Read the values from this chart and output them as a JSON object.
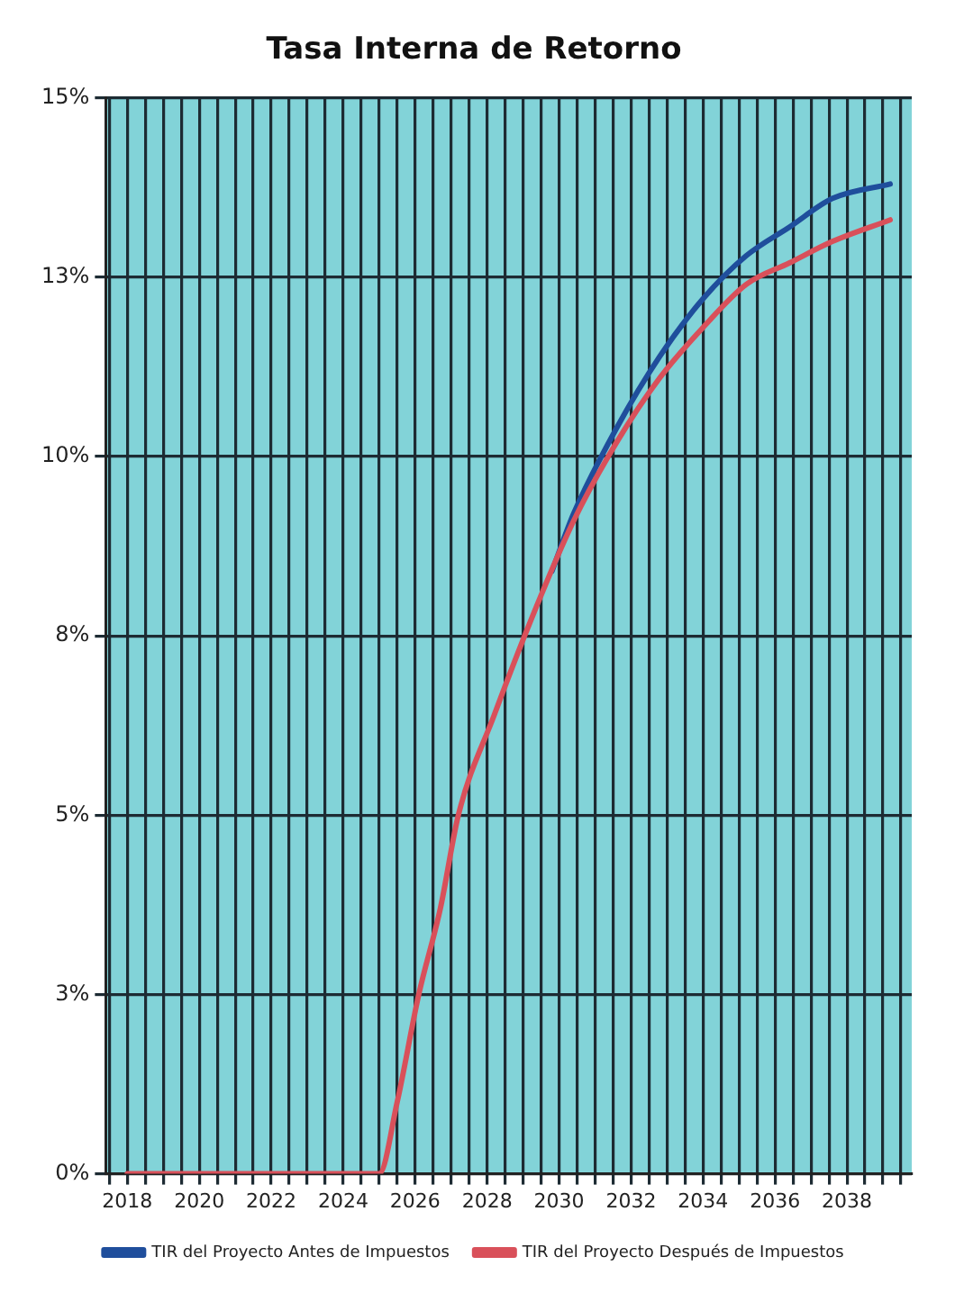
{
  "chart_data": {
    "type": "line",
    "title": "Tasa Interna de Retorno",
    "series": [
      {
        "name": "TIR del Proyecto Antes de Impuestos",
        "color": "#1f4e9c",
        "x": [
          2029.8,
          2030.4,
          2031.6,
          2032.8,
          2034,
          2035.2,
          2036.4,
          2037.6,
          2039.2
        ],
        "values": [
          8.4,
          9.2,
          10.4,
          11.4,
          12.2,
          12.8,
          13.2,
          13.6,
          13.8
        ]
      },
      {
        "name": "TIR del Proyecto Después de Impuestos",
        "color": "#d9505a",
        "x": [
          2018,
          2019,
          2020,
          2021,
          2022,
          2023,
          2024,
          2025,
          2025.5,
          2026.1,
          2026.7,
          2027.2,
          2028.2,
          2029.2,
          2030.4,
          2031.6,
          2032.8,
          2034,
          2035.2,
          2036.4,
          2037.6,
          2039.2
        ],
        "values": [
          0,
          0,
          0,
          0,
          0,
          0,
          0,
          0,
          1,
          2.5,
          3.7,
          5,
          6.4,
          7.7,
          9.1,
          10.2,
          11.1,
          11.8,
          12.4,
          12.7,
          13,
          13.3
        ]
      }
    ],
    "xlim": [
      2017.4,
      2039.8
    ],
    "xticks": [
      {
        "value": 2017.5,
        "label": null
      },
      {
        "value": 2018,
        "label": "2018"
      },
      {
        "value": 2018.5,
        "label": null
      },
      {
        "value": 2019,
        "label": null
      },
      {
        "value": 2019.5,
        "label": null
      },
      {
        "value": 2020,
        "label": "2020"
      },
      {
        "value": 2020.5,
        "label": null
      },
      {
        "value": 2021,
        "label": null
      },
      {
        "value": 2021.5,
        "label": null
      },
      {
        "value": 2022,
        "label": "2022"
      },
      {
        "value": 2022.5,
        "label": null
      },
      {
        "value": 2023,
        "label": null
      },
      {
        "value": 2023.5,
        "label": null
      },
      {
        "value": 2024,
        "label": "2024"
      },
      {
        "value": 2024.5,
        "label": null
      },
      {
        "value": 2025,
        "label": null
      },
      {
        "value": 2025.5,
        "label": null
      },
      {
        "value": 2026,
        "label": "2026"
      },
      {
        "value": 2026.5,
        "label": null
      },
      {
        "value": 2027,
        "label": null
      },
      {
        "value": 2027.5,
        "label": null
      },
      {
        "value": 2028,
        "label": "2028"
      },
      {
        "value": 2028.5,
        "label": null
      },
      {
        "value": 2029,
        "label": null
      },
      {
        "value": 2029.5,
        "label": null
      },
      {
        "value": 2030,
        "label": "2030"
      },
      {
        "value": 2030.5,
        "label": null
      },
      {
        "value": 2031,
        "label": null
      },
      {
        "value": 2031.5,
        "label": null
      },
      {
        "value": 2032,
        "label": "2032"
      },
      {
        "value": 2032.5,
        "label": null
      },
      {
        "value": 2033,
        "label": null
      },
      {
        "value": 2033.5,
        "label": null
      },
      {
        "value": 2034,
        "label": "2034"
      },
      {
        "value": 2034.5,
        "label": null
      },
      {
        "value": 2035,
        "label": null
      },
      {
        "value": 2035.5,
        "label": null
      },
      {
        "value": 2036,
        "label": "2036"
      },
      {
        "value": 2036.5,
        "label": null
      },
      {
        "value": 2037,
        "label": null
      },
      {
        "value": 2037.5,
        "label": null
      },
      {
        "value": 2038,
        "label": "2038"
      },
      {
        "value": 2038.5,
        "label": null
      },
      {
        "value": 2039,
        "label": null
      },
      {
        "value": 2039.5,
        "label": null
      }
    ],
    "ylim": [
      0,
      15
    ],
    "yticks": [
      {
        "value": 0,
        "label": "0%"
      },
      {
        "value": 2.5,
        "label": "3%"
      },
      {
        "value": 5,
        "label": "5%"
      },
      {
        "value": 7.5,
        "label": "8%"
      },
      {
        "value": 10,
        "label": "10%"
      },
      {
        "value": 12.5,
        "label": "13%"
      },
      {
        "value": 15,
        "label": "15%"
      }
    ],
    "grid": true,
    "legend": "bottom",
    "marker": "none",
    "line_style": "solid"
  }
}
